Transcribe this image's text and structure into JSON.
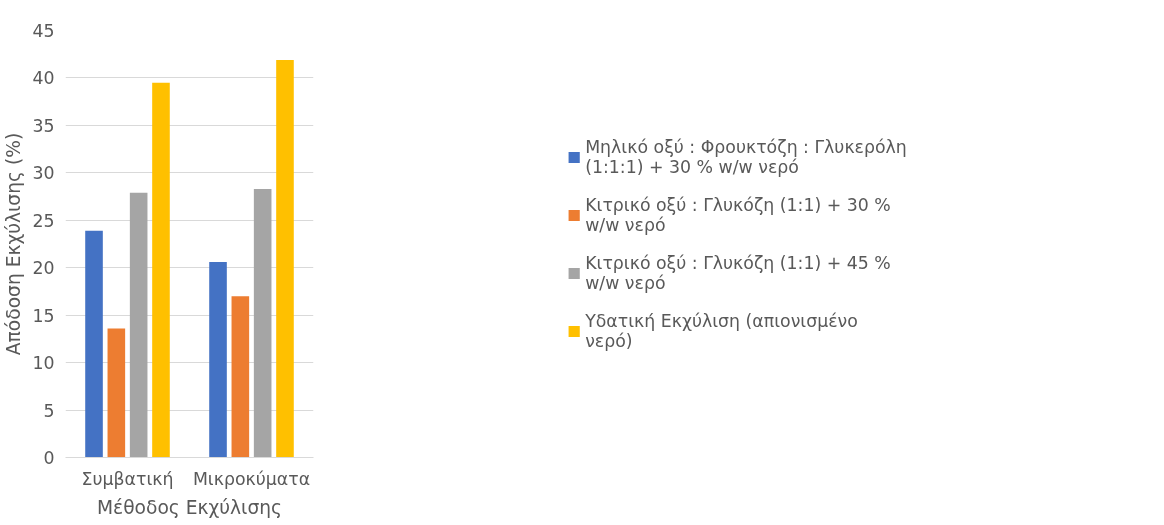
{
  "chart_data": {
    "type": "bar",
    "xlabel": "Μέθοδος Εκχύλισης",
    "ylabel": "Απόδοση Εκχύλισης (%)",
    "categories": [
      "Συμβατική",
      "Μικροκύματα"
    ],
    "series": [
      {
        "name": "Μηλικό οξύ : Φρουκτόζη : Γλυκερόλη (1:1:1) + 30 % w/w νερό",
        "color": "#4472c4",
        "values": [
          23.9,
          20.6
        ]
      },
      {
        "name": "Κιτρικό οξύ : Γλυκόζη (1:1) + 30 % w/w νερό",
        "color": "#ed7d31",
        "values": [
          13.6,
          17.0
        ]
      },
      {
        "name": "Κιτρικό οξύ : Γλυκόζη (1:1) + 45 % w/w νερό",
        "color": "#a5a5a5",
        "values": [
          27.9,
          28.3
        ]
      },
      {
        "name": "Υδατική Εκχύλιση (απιονισμένο νερό)",
        "color": "#ffc000",
        "values": [
          39.5,
          41.9
        ]
      }
    ],
    "ylim": [
      0,
      45
    ],
    "yticks": [
      0,
      5,
      10,
      15,
      20,
      25,
      30,
      35,
      40,
      45
    ],
    "grid": "y",
    "legend": "right"
  }
}
